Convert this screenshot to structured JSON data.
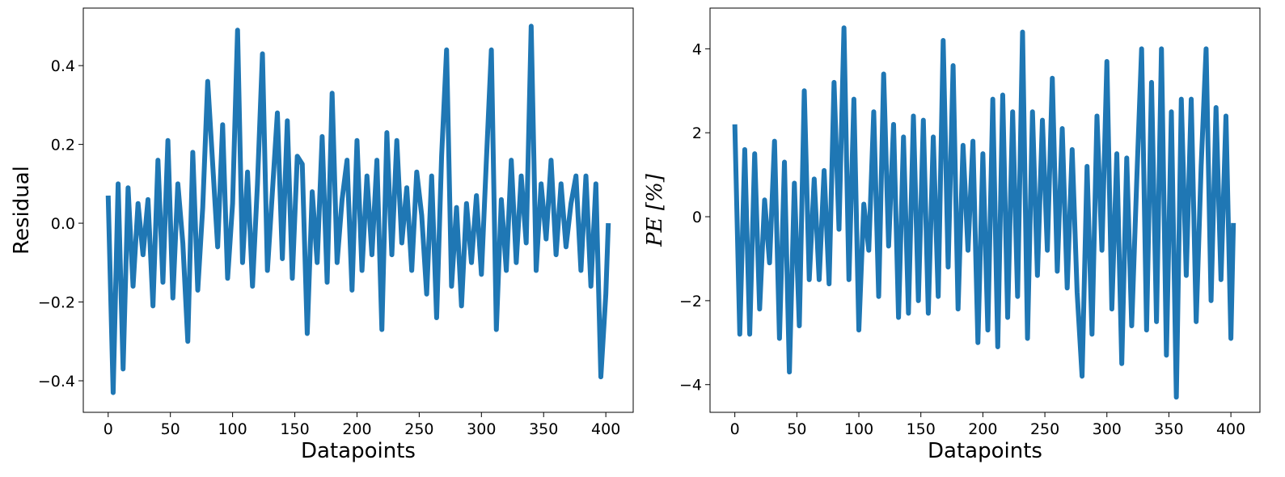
{
  "chart_data": [
    {
      "type": "line",
      "xlabel": "Datapoints",
      "ylabel": "Residual",
      "color": "#1f77b4",
      "xlim": [
        -20,
        422
      ],
      "xticks": [
        0,
        50,
        100,
        150,
        200,
        250,
        300,
        350,
        400
      ],
      "ylim": [
        -0.48,
        0.546
      ],
      "yticks": [
        {
          "value": -0.4,
          "label": "−0.4"
        },
        {
          "value": -0.2,
          "label": "−0.2"
        },
        {
          "value": 0,
          "label": "0.0"
        },
        0.2,
        0.4
      ],
      "x": [
        0,
        4,
        8,
        12,
        16,
        20,
        24,
        28,
        32,
        36,
        40,
        44,
        48,
        52,
        56,
        60,
        64,
        68,
        72,
        76,
        80,
        84,
        88,
        92,
        96,
        100,
        104,
        108,
        112,
        116,
        120,
        124,
        128,
        132,
        136,
        140,
        144,
        148,
        152,
        156,
        160,
        164,
        168,
        172,
        176,
        180,
        184,
        188,
        192,
        196,
        200,
        204,
        208,
        212,
        216,
        220,
        224,
        228,
        232,
        236,
        240,
        244,
        248,
        252,
        256,
        260,
        264,
        268,
        272,
        276,
        280,
        284,
        288,
        292,
        296,
        300,
        304,
        308,
        312,
        316,
        320,
        324,
        328,
        332,
        336,
        340,
        344,
        348,
        352,
        356,
        360,
        364,
        368,
        372,
        376,
        380,
        384,
        388,
        392,
        396,
        400,
        402
      ],
      "values": [
        0.07,
        -0.43,
        0.1,
        -0.37,
        0.09,
        -0.16,
        0.05,
        -0.08,
        0.06,
        -0.21,
        0.16,
        -0.15,
        0.21,
        -0.19,
        0.1,
        -0.05,
        -0.3,
        0.18,
        -0.17,
        0.04,
        0.36,
        0.15,
        -0.06,
        0.25,
        -0.14,
        0.05,
        0.49,
        -0.1,
        0.13,
        -0.16,
        0.1,
        0.43,
        -0.12,
        0.08,
        0.28,
        -0.09,
        0.26,
        -0.14,
        0.17,
        0.15,
        -0.28,
        0.08,
        -0.1,
        0.22,
        -0.15,
        0.33,
        -0.1,
        0.06,
        0.16,
        -0.17,
        0.21,
        -0.12,
        0.12,
        -0.08,
        0.16,
        -0.27,
        0.23,
        -0.08,
        0.21,
        -0.05,
        0.09,
        -0.12,
        0.13,
        0.02,
        -0.18,
        0.12,
        -0.24,
        0.17,
        0.44,
        -0.16,
        0.04,
        -0.21,
        0.05,
        -0.1,
        0.07,
        -0.13,
        0.16,
        0.44,
        -0.27,
        0.06,
        -0.12,
        0.16,
        -0.1,
        0.12,
        -0.05,
        0.5,
        -0.12,
        0.1,
        -0.04,
        0.16,
        -0.08,
        0.1,
        -0.06,
        0.05,
        0.12,
        -0.12,
        0.12,
        -0.16,
        0.1,
        -0.39,
        -0.18,
        0.0
      ]
    },
    {
      "type": "line",
      "xlabel": "Datapoints",
      "ylabel": "PE [%]",
      "color": "#1f77b4",
      "xlim": [
        -20,
        423.4
      ],
      "xticks": [
        0,
        50,
        100,
        150,
        200,
        250,
        300,
        350,
        400
      ],
      "ylim": [
        -4.66,
        4.97
      ],
      "yticks": [
        {
          "value": -4,
          "label": "−4"
        },
        {
          "value": -2,
          "label": "−2"
        },
        0,
        2,
        4
      ],
      "x": [
        0,
        4,
        8,
        12,
        16,
        20,
        24,
        28,
        32,
        36,
        40,
        44,
        48,
        52,
        56,
        60,
        64,
        68,
        72,
        76,
        80,
        84,
        88,
        92,
        96,
        100,
        104,
        108,
        112,
        116,
        120,
        124,
        128,
        132,
        136,
        140,
        144,
        148,
        152,
        156,
        160,
        164,
        168,
        172,
        176,
        180,
        184,
        188,
        192,
        196,
        200,
        204,
        208,
        212,
        216,
        220,
        224,
        228,
        232,
        236,
        240,
        244,
        248,
        252,
        256,
        260,
        264,
        268,
        272,
        276,
        280,
        284,
        288,
        292,
        296,
        300,
        304,
        308,
        312,
        316,
        320,
        324,
        328,
        332,
        336,
        340,
        344,
        348,
        352,
        356,
        360,
        364,
        368,
        372,
        376,
        380,
        384,
        388,
        392,
        396,
        400,
        402
      ],
      "values": [
        2.2,
        -2.8,
        1.6,
        -2.8,
        1.5,
        -2.2,
        0.4,
        -1.1,
        1.8,
        -2.9,
        1.3,
        -3.7,
        0.8,
        -2.6,
        3.0,
        -1.5,
        0.9,
        -1.5,
        1.1,
        -1.6,
        3.2,
        -0.3,
        4.5,
        -1.5,
        2.8,
        -2.7,
        0.3,
        -0.8,
        2.5,
        -1.9,
        3.4,
        -0.7,
        2.2,
        -2.4,
        1.9,
        -2.3,
        2.4,
        -2.0,
        2.3,
        -2.3,
        1.9,
        -1.9,
        4.2,
        -1.2,
        3.6,
        -2.2,
        1.7,
        -0.8,
        1.8,
        -3.0,
        1.5,
        -2.7,
        2.8,
        -3.1,
        2.9,
        -2.4,
        2.5,
        -1.9,
        4.4,
        -2.9,
        2.5,
        -1.4,
        2.3,
        -0.8,
        3.3,
        -1.3,
        2.1,
        -1.7,
        1.6,
        -1.8,
        -3.8,
        1.2,
        -2.8,
        2.4,
        -0.8,
        3.7,
        -2.2,
        1.5,
        -3.5,
        1.4,
        -2.6,
        0.8,
        4.0,
        -2.7,
        3.2,
        -2.5,
        4.0,
        -3.3,
        2.5,
        -4.3,
        2.8,
        -1.4,
        2.8,
        -2.5,
        1.2,
        4.0,
        -2.0,
        2.6,
        -1.5,
        2.4,
        -2.9,
        -0.15
      ]
    }
  ]
}
